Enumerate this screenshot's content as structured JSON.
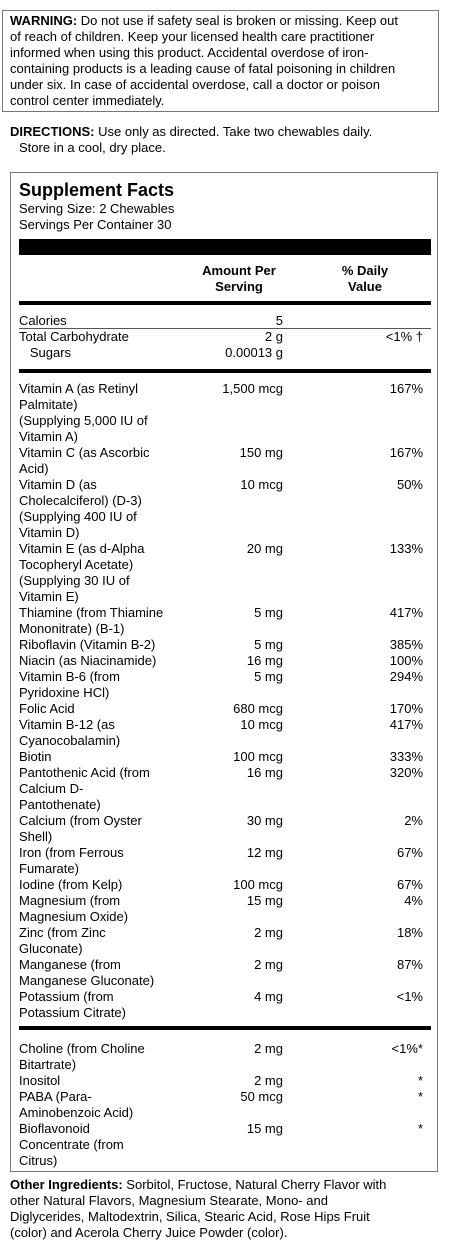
{
  "warning": {
    "label": "WARNING:",
    "lines": [
      " Do not use if safety seal is broken or missing. Keep out",
      "of reach of children. Keep your licensed health care practitioner",
      "informed when using this product. Accidental overdose of iron-",
      "containing products is a leading cause of fatal poisoning in children",
      "under six. In case of accidental overdose, call a doctor or poison",
      "control center immediately."
    ]
  },
  "directions": {
    "label": "DIRECTIONS:",
    "line1": " Use only as directed. Take two chewables daily.",
    "line2": "Store in a cool, dry place."
  },
  "facts": {
    "title": "Supplement Facts",
    "serving_size": "Serving Size: 2 Chewables",
    "servings_per_container": "Servings Per Container 30",
    "col_amount_1": "Amount Per",
    "col_amount_2": "Serving",
    "col_dv_1": "% Daily",
    "col_dv_2": "Value",
    "section1": [
      {
        "name": [
          "Calories"
        ],
        "amount": "5",
        "dv": ""
      },
      {
        "name": [
          "Total Carbohydrate"
        ],
        "amount": "2 g",
        "dv": "<1% †"
      },
      {
        "name": [
          "   Sugars"
        ],
        "amount": "0.00013 g",
        "dv": ""
      }
    ],
    "section2": [
      {
        "name": [
          "Vitamin A (as Retinyl",
          "Palmitate)",
          "(Supplying 5,000 IU of",
          "Vitamin A)"
        ],
        "amount": "1,500 mcg",
        "dv": "167%"
      },
      {
        "name": [
          "Vitamin C (as Ascorbic",
          "Acid)"
        ],
        "amount": "150 mg",
        "dv": "167%"
      },
      {
        "name": [
          "Vitamin D (as",
          "Cholecalciferol) (D-3)",
          "(Supplying 400 IU of",
          "Vitamin D)"
        ],
        "amount": "10 mcg",
        "dv": "50%"
      },
      {
        "name": [
          "Vitamin E (as d-Alpha",
          "Tocopheryl Acetate)",
          "(Supplying 30 IU of",
          "Vitamin E)"
        ],
        "amount": "20 mg",
        "dv": "133%"
      },
      {
        "name": [
          "Thiamine (from Thiamine",
          "Mononitrate) (B-1)"
        ],
        "amount": "5 mg",
        "dv": "417%"
      },
      {
        "name": [
          "Riboflavin (Vitamin B-2)"
        ],
        "amount": "5 mg",
        "dv": "385%"
      },
      {
        "name": [
          "Niacin (as Niacinamide)"
        ],
        "amount": "16 mg",
        "dv": "100%"
      },
      {
        "name": [
          "Vitamin B-6 (from",
          "Pyridoxine HCl)"
        ],
        "amount": "5 mg",
        "dv": "294%"
      },
      {
        "name": [
          "Folic Acid"
        ],
        "amount": "680 mcg",
        "dv": "170%"
      },
      {
        "name": [
          "Vitamin B-12 (as",
          "Cyanocobalamin)"
        ],
        "amount": "10 mcg",
        "dv": "417%"
      },
      {
        "name": [
          "Biotin"
        ],
        "amount": "100 mcg",
        "dv": "333%"
      },
      {
        "name": [
          "Pantothenic Acid (from",
          "Calcium D-",
          "Pantothenate)"
        ],
        "amount": "16 mg",
        "dv": "320%"
      },
      {
        "name": [
          "Calcium (from Oyster",
          "Shell)"
        ],
        "amount": "30 mg",
        "dv": "2%"
      },
      {
        "name": [
          "Iron (from Ferrous",
          "Fumarate)"
        ],
        "amount": "12 mg",
        "dv": "67%"
      },
      {
        "name": [
          "Iodine (from Kelp)"
        ],
        "amount": "100 mcg",
        "dv": "67%"
      },
      {
        "name": [
          "Magnesium (from",
          "Magnesium Oxide)"
        ],
        "amount": "15 mg",
        "dv": "4%"
      },
      {
        "name": [
          "Zinc (from Zinc",
          "Gluconate)"
        ],
        "amount": "2 mg",
        "dv": "18%"
      },
      {
        "name": [
          "Manganese (from",
          "Manganese Gluconate)"
        ],
        "amount": "2 mg",
        "dv": "87%"
      },
      {
        "name": [
          "Potassium (from",
          "Potassium Citrate)"
        ],
        "amount": "4 mg",
        "dv": "<1%"
      }
    ],
    "section3": [
      {
        "name": [
          "Choline (from Choline",
          "Bitartrate)"
        ],
        "amount": "2 mg",
        "dv": "<1%*"
      },
      {
        "name": [
          "Inositol"
        ],
        "amount": "2 mg",
        "dv": "*"
      },
      {
        "name": [
          "PABA (Para-",
          "Aminobenzoic Acid)"
        ],
        "amount": "50 mcg",
        "dv": "*"
      },
      {
        "name": [
          "Bioflavonoid",
          "Concentrate (from",
          "Citrus)"
        ],
        "amount": "15 mg",
        "dv": "*"
      }
    ]
  },
  "other_ingredients": {
    "label": "Other Ingredients:",
    "lines": [
      " Sorbitol, Fructose, Natural Cherry Flavor with",
      "other Natural Flavors, Magnesium Stearate, Mono- and",
      "Diglycerides, Maltodextrin, Silica, Stearic Acid, Rose Hips Fruit",
      "(color) and Acerola Cherry Juice Powder (color)."
    ]
  }
}
